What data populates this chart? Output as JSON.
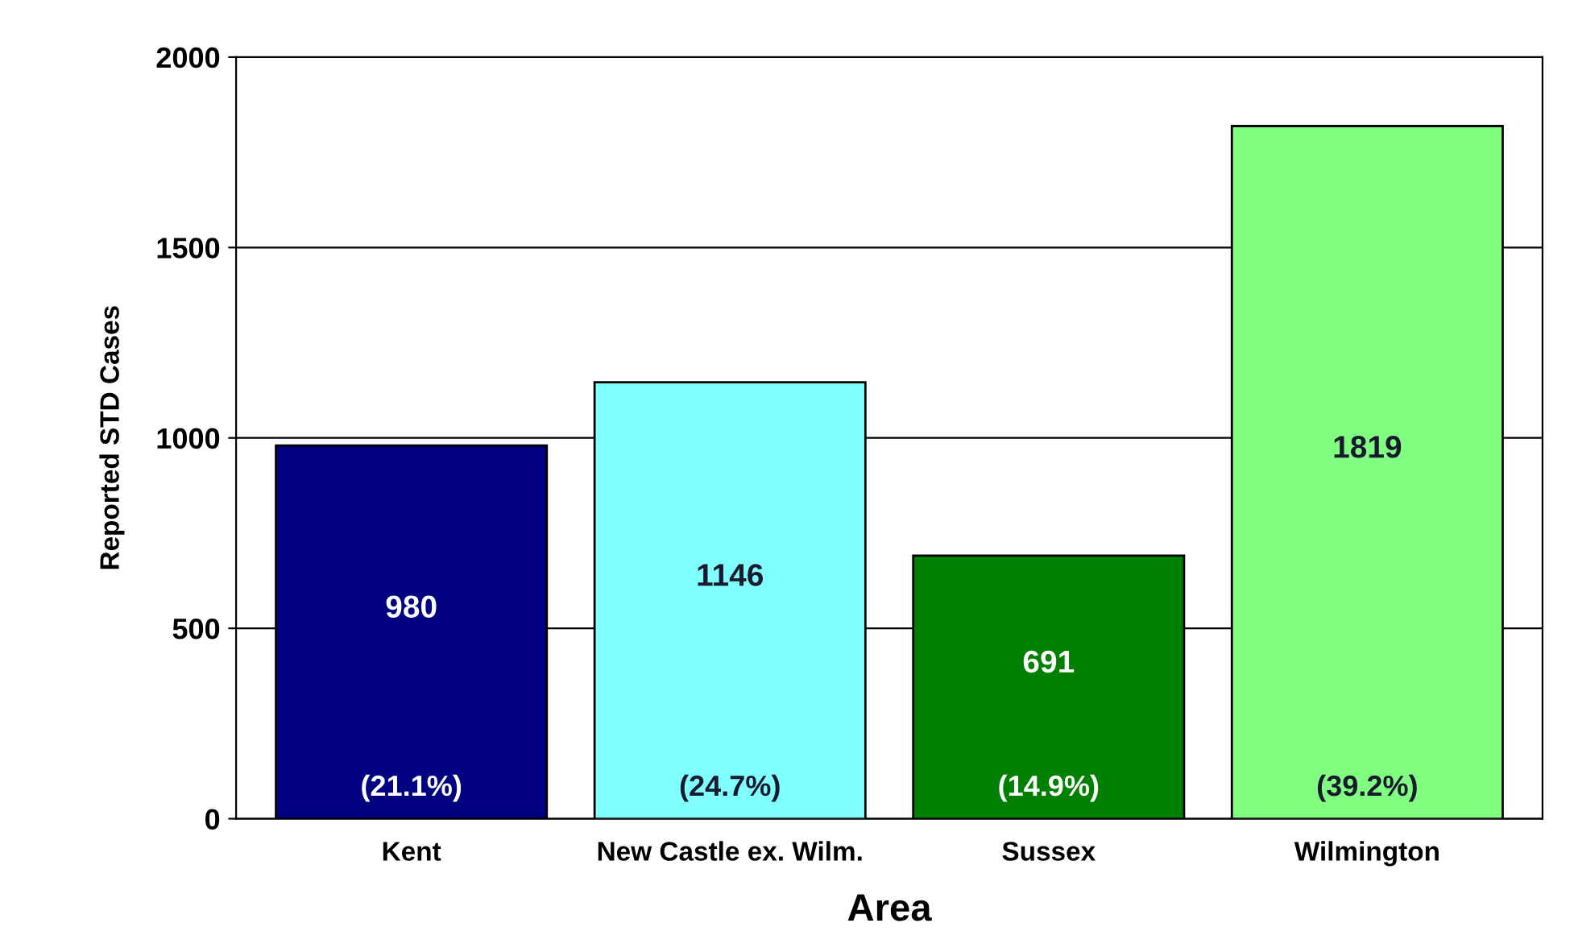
{
  "chart_data": {
    "type": "bar",
    "xlabel": "Area",
    "ylabel": "Reported STD Cases",
    "categories": [
      "Kent",
      "New Castle ex. Wilm.",
      "Sussex",
      "Wilmington"
    ],
    "values": [
      980,
      1146,
      691,
      1819
    ],
    "colors": [
      "#000080",
      "#80ffff",
      "#008000",
      "#80ff80"
    ],
    "ylim": [
      0,
      2000
    ],
    "yticks": [
      0,
      500,
      1000,
      1500,
      2000
    ],
    "grid": "y",
    "legend": false,
    "data_labels": true,
    "annotations": [
      "(21.1%)",
      "(24.7%)",
      "(14.9%)",
      "(39.2%)"
    ]
  }
}
